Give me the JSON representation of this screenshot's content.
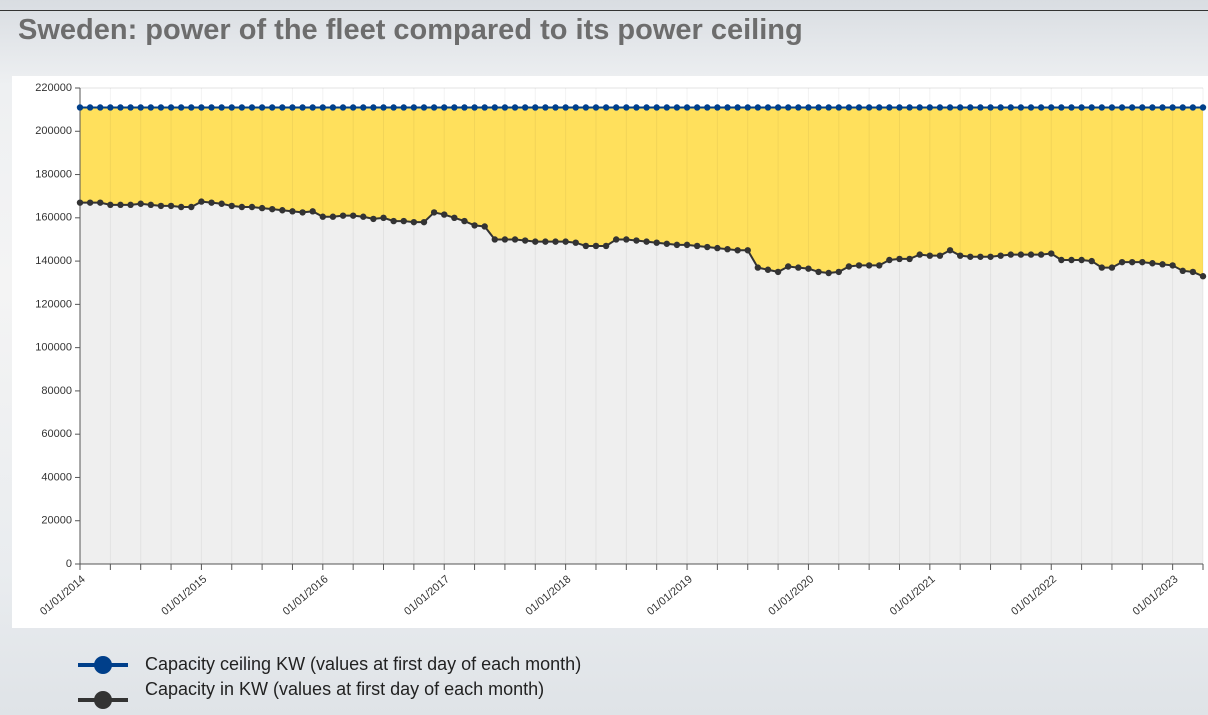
{
  "chart_data": {
    "type": "area",
    "title": "Sweden: power of the fleet compared to its power ceiling",
    "categories": [
      "01/01/2014",
      null,
      null,
      null,
      null,
      null,
      null,
      null,
      null,
      null,
      null,
      null,
      "01/01/2015",
      null,
      null,
      null,
      null,
      null,
      null,
      null,
      null,
      null,
      null,
      null,
      "01/01/2016",
      null,
      null,
      null,
      null,
      null,
      null,
      null,
      null,
      null,
      null,
      null,
      "01/01/2017",
      null,
      null,
      null,
      null,
      null,
      null,
      null,
      null,
      null,
      null,
      null,
      "01/01/2018",
      null,
      null,
      null,
      null,
      null,
      null,
      null,
      null,
      null,
      null,
      null,
      "01/01/2019",
      null,
      null,
      null,
      null,
      null,
      null,
      null,
      null,
      null,
      null,
      null,
      "01/01/2020",
      null,
      null,
      null,
      null,
      null,
      null,
      null,
      null,
      null,
      null,
      null,
      "01/01/2021",
      null,
      null,
      null,
      null,
      null,
      null,
      null,
      null,
      null,
      null,
      null,
      "01/01/2022",
      null,
      null,
      null,
      null,
      null,
      null,
      null,
      null,
      null,
      null,
      null,
      "01/01/2023",
      null,
      null,
      null
    ],
    "series": [
      {
        "name": "Capacity ceiling KW (values at first day of each month)",
        "color": "#003f8a",
        "fill": "#ffe05c",
        "values": [
          211000,
          211000,
          211000,
          211000,
          211000,
          211000,
          211000,
          211000,
          211000,
          211000,
          211000,
          211000,
          211000,
          211000,
          211000,
          211000,
          211000,
          211000,
          211000,
          211000,
          211000,
          211000,
          211000,
          211000,
          211000,
          211000,
          211000,
          211000,
          211000,
          211000,
          211000,
          211000,
          211000,
          211000,
          211000,
          211000,
          211000,
          211000,
          211000,
          211000,
          211000,
          211000,
          211000,
          211000,
          211000,
          211000,
          211000,
          211000,
          211000,
          211000,
          211000,
          211000,
          211000,
          211000,
          211000,
          211000,
          211000,
          211000,
          211000,
          211000,
          211000,
          211000,
          211000,
          211000,
          211000,
          211000,
          211000,
          211000,
          211000,
          211000,
          211000,
          211000,
          211000,
          211000,
          211000,
          211000,
          211000,
          211000,
          211000,
          211000,
          211000,
          211000,
          211000,
          211000,
          211000,
          211000,
          211000,
          211000,
          211000,
          211000,
          211000,
          211000,
          211000,
          211000,
          211000,
          211000,
          211000,
          211000,
          211000,
          211000,
          211000,
          211000,
          211000,
          211000,
          211000,
          211000,
          211000,
          211000,
          211000,
          211000,
          211000,
          211000
        ]
      },
      {
        "name": "Capacity in KW (values at first day of each month)",
        "color": "#333333",
        "fill": "#efefef",
        "values": [
          167000,
          167000,
          167000,
          166000,
          166000,
          166000,
          166500,
          166000,
          165500,
          165500,
          165000,
          165000,
          167500,
          167000,
          166500,
          165500,
          165000,
          165000,
          164500,
          164000,
          163500,
          163000,
          162500,
          163000,
          160500,
          160500,
          161000,
          161000,
          160500,
          159500,
          160000,
          158500,
          158500,
          158000,
          158000,
          162500,
          161500,
          160000,
          158500,
          156500,
          156000,
          150000,
          150000,
          150000,
          149500,
          149000,
          149000,
          149000,
          149000,
          148500,
          147000,
          147000,
          147000,
          150000,
          150000,
          149500,
          149000,
          148500,
          148000,
          147500,
          147500,
          147000,
          146500,
          146000,
          145500,
          145000,
          145000,
          137000,
          136000,
          135000,
          137500,
          137000,
          136500,
          135000,
          134500,
          135000,
          137500,
          138000,
          138000,
          138000,
          140500,
          141000,
          141000,
          143000,
          142500,
          142500,
          145000,
          142500,
          142000,
          142000,
          142000,
          142500,
          143000,
          143000,
          143000,
          143000,
          143500,
          140500,
          140500,
          140500,
          140000,
          137000,
          137000,
          139500,
          139500,
          139500,
          139000,
          138500,
          138000,
          135500,
          135000,
          133000
        ]
      }
    ],
    "ylim": [
      0,
      220000
    ],
    "yticks": [
      0,
      20000,
      40000,
      60000,
      80000,
      100000,
      120000,
      140000,
      160000,
      180000,
      200000,
      220000
    ],
    "grid": true
  }
}
